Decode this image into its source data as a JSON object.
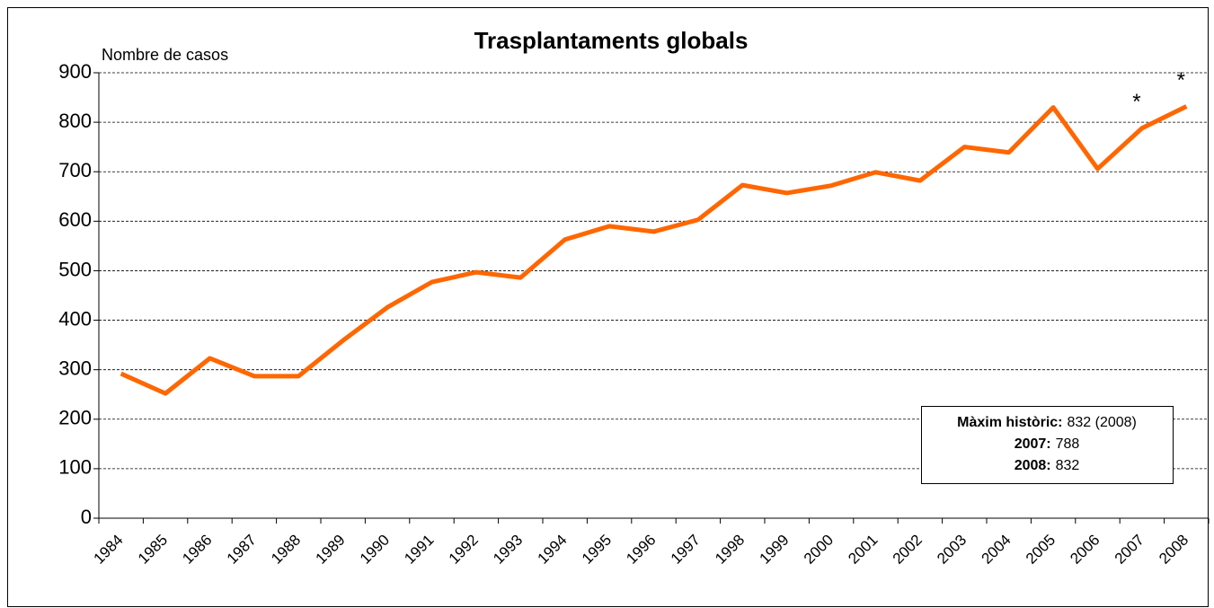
{
  "chart_data": {
    "type": "line",
    "title": "Trasplantaments globals",
    "y_label": "Nombre de casos",
    "categories": [
      "1984",
      "1985",
      "1986",
      "1987",
      "1988",
      "1989",
      "1990",
      "1991",
      "1992",
      "1993",
      "1994",
      "1995",
      "1996",
      "1997",
      "1998",
      "1999",
      "2000",
      "2001",
      "2002",
      "2003",
      "2004",
      "2005",
      "2006",
      "2007",
      "2008"
    ],
    "series": [
      {
        "name": "Trasplantaments",
        "color": "#ff6600",
        "values": [
          292,
          252,
          323,
          287,
          287,
          359,
          426,
          477,
          497,
          486,
          563,
          590,
          579,
          603,
          673,
          657,
          672,
          699,
          682,
          750,
          739,
          830,
          706,
          788,
          832
        ]
      }
    ],
    "ylim": [
      0,
      900
    ],
    "yticks": [
      0,
      100,
      200,
      300,
      400,
      500,
      600,
      700,
      800,
      900
    ],
    "grid": true,
    "point_annotations": [
      {
        "category": "2007",
        "text": "*"
      },
      {
        "category": "2008",
        "text": "*"
      }
    ],
    "annotation_box": [
      {
        "label": "Màxim històric:",
        "text": "832 (2008)"
      },
      {
        "label": "2007:",
        "text": "788"
      },
      {
        "label": "2008:",
        "text": "832"
      }
    ]
  }
}
